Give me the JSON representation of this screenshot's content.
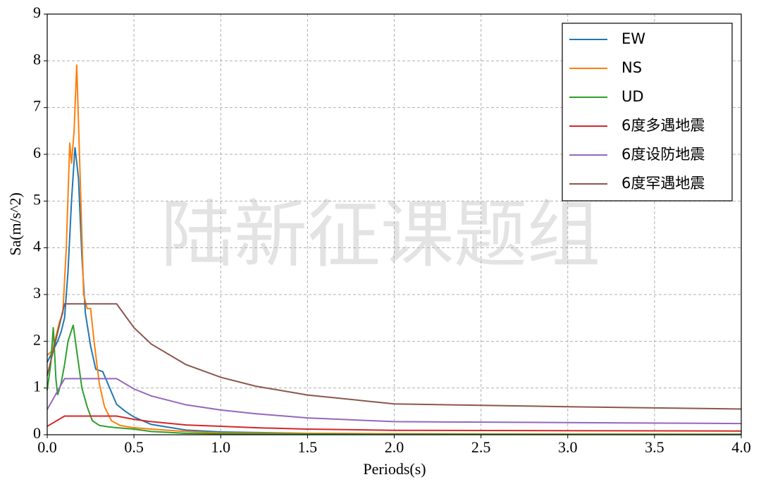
{
  "chart_data": {
    "type": "line",
    "watermark": "陆新征课题组",
    "x_label": "Periods(s)",
    "y_label": "Sa(m/s^2)",
    "xlim": [
      0,
      4
    ],
    "ylim": [
      0,
      9
    ],
    "xticks": [
      {
        "value": 0,
        "label": "0.0"
      },
      0.5,
      {
        "value": 1,
        "label": "1.0"
      },
      1.5,
      {
        "value": 2,
        "label": "2.0"
      },
      2.5,
      {
        "value": 3,
        "label": "3.0"
      },
      3.5,
      {
        "value": 4,
        "label": "4.0"
      }
    ],
    "yticks": [
      0,
      1,
      2,
      3,
      4,
      5,
      6,
      7,
      8,
      9
    ],
    "grid": true,
    "legend": "upper right",
    "series": [
      {
        "name": "EW",
        "color": "#1f77b4",
        "x": [
          0,
          0.04,
          0.06,
          0.08,
          0.1,
          0.12,
          0.14,
          0.16,
          0.18,
          0.2,
          0.22,
          0.25,
          0.28,
          0.32,
          0.36,
          0.4,
          0.45,
          0.5,
          0.6,
          0.8,
          1.0,
          1.5,
          2.0,
          3.0,
          4.0
        ],
        "values": [
          1.55,
          1.85,
          2.0,
          2.2,
          2.5,
          3.5,
          5.0,
          6.15,
          5.5,
          3.8,
          2.6,
          1.9,
          1.4,
          1.35,
          1.0,
          0.65,
          0.5,
          0.38,
          0.22,
          0.1,
          0.06,
          0.03,
          0.02,
          0.01,
          0.01
        ]
      },
      {
        "name": "NS",
        "color": "#ff7f0e",
        "x": [
          0,
          0.03,
          0.05,
          0.07,
          0.09,
          0.11,
          0.13,
          0.14,
          0.155,
          0.17,
          0.19,
          0.21,
          0.23,
          0.25,
          0.27,
          0.3,
          0.33,
          0.37,
          0.42,
          0.5,
          0.6,
          0.8,
          1.0,
          2.0,
          4.0
        ],
        "values": [
          1.7,
          1.8,
          2.1,
          2.4,
          2.6,
          4.0,
          6.25,
          5.8,
          6.5,
          7.92,
          5.5,
          3.0,
          2.7,
          2.7,
          2.0,
          1.1,
          0.6,
          0.3,
          0.2,
          0.15,
          0.12,
          0.07,
          0.04,
          0.02,
          0.01
        ]
      },
      {
        "name": "UD",
        "color": "#2ca02c",
        "x": [
          0,
          0.02,
          0.035,
          0.05,
          0.06,
          0.08,
          0.1,
          0.12,
          0.15,
          0.17,
          0.2,
          0.23,
          0.26,
          0.3,
          0.35,
          0.4,
          0.5,
          0.6,
          0.8,
          1.0,
          2.0,
          4.0
        ],
        "values": [
          0.95,
          1.5,
          2.3,
          1.2,
          0.85,
          1.1,
          1.5,
          2.0,
          2.35,
          1.8,
          1.0,
          0.6,
          0.3,
          0.2,
          0.17,
          0.15,
          0.12,
          0.07,
          0.03,
          0.02,
          0.01,
          0.005
        ]
      },
      {
        "name": "6度多遇地震",
        "color": "#d62728",
        "x": [
          0,
          0.1,
          0.4,
          0.5,
          0.6,
          0.8,
          1.0,
          1.2,
          1.5,
          2.0,
          3.0,
          4.0
        ],
        "values": [
          0.18,
          0.4,
          0.4,
          0.33,
          0.28,
          0.21,
          0.18,
          0.15,
          0.12,
          0.094,
          0.087,
          0.08
        ]
      },
      {
        "name": "6度设防地震",
        "color": "#9467bd",
        "x": [
          0,
          0.1,
          0.4,
          0.5,
          0.6,
          0.8,
          1.0,
          1.2,
          1.5,
          2.0,
          3.0,
          4.0
        ],
        "values": [
          0.54,
          1.2,
          1.2,
          0.98,
          0.83,
          0.64,
          0.53,
          0.45,
          0.36,
          0.28,
          0.26,
          0.24
        ]
      },
      {
        "name": "6度罕遇地震",
        "color": "#8c564b",
        "x": [
          0,
          0.1,
          0.4,
          0.5,
          0.6,
          0.8,
          1.0,
          1.2,
          1.5,
          2.0,
          3.0,
          4.0
        ],
        "values": [
          1.26,
          2.8,
          2.8,
          2.29,
          1.94,
          1.5,
          1.23,
          1.04,
          0.85,
          0.66,
          0.6,
          0.55
        ]
      }
    ]
  }
}
